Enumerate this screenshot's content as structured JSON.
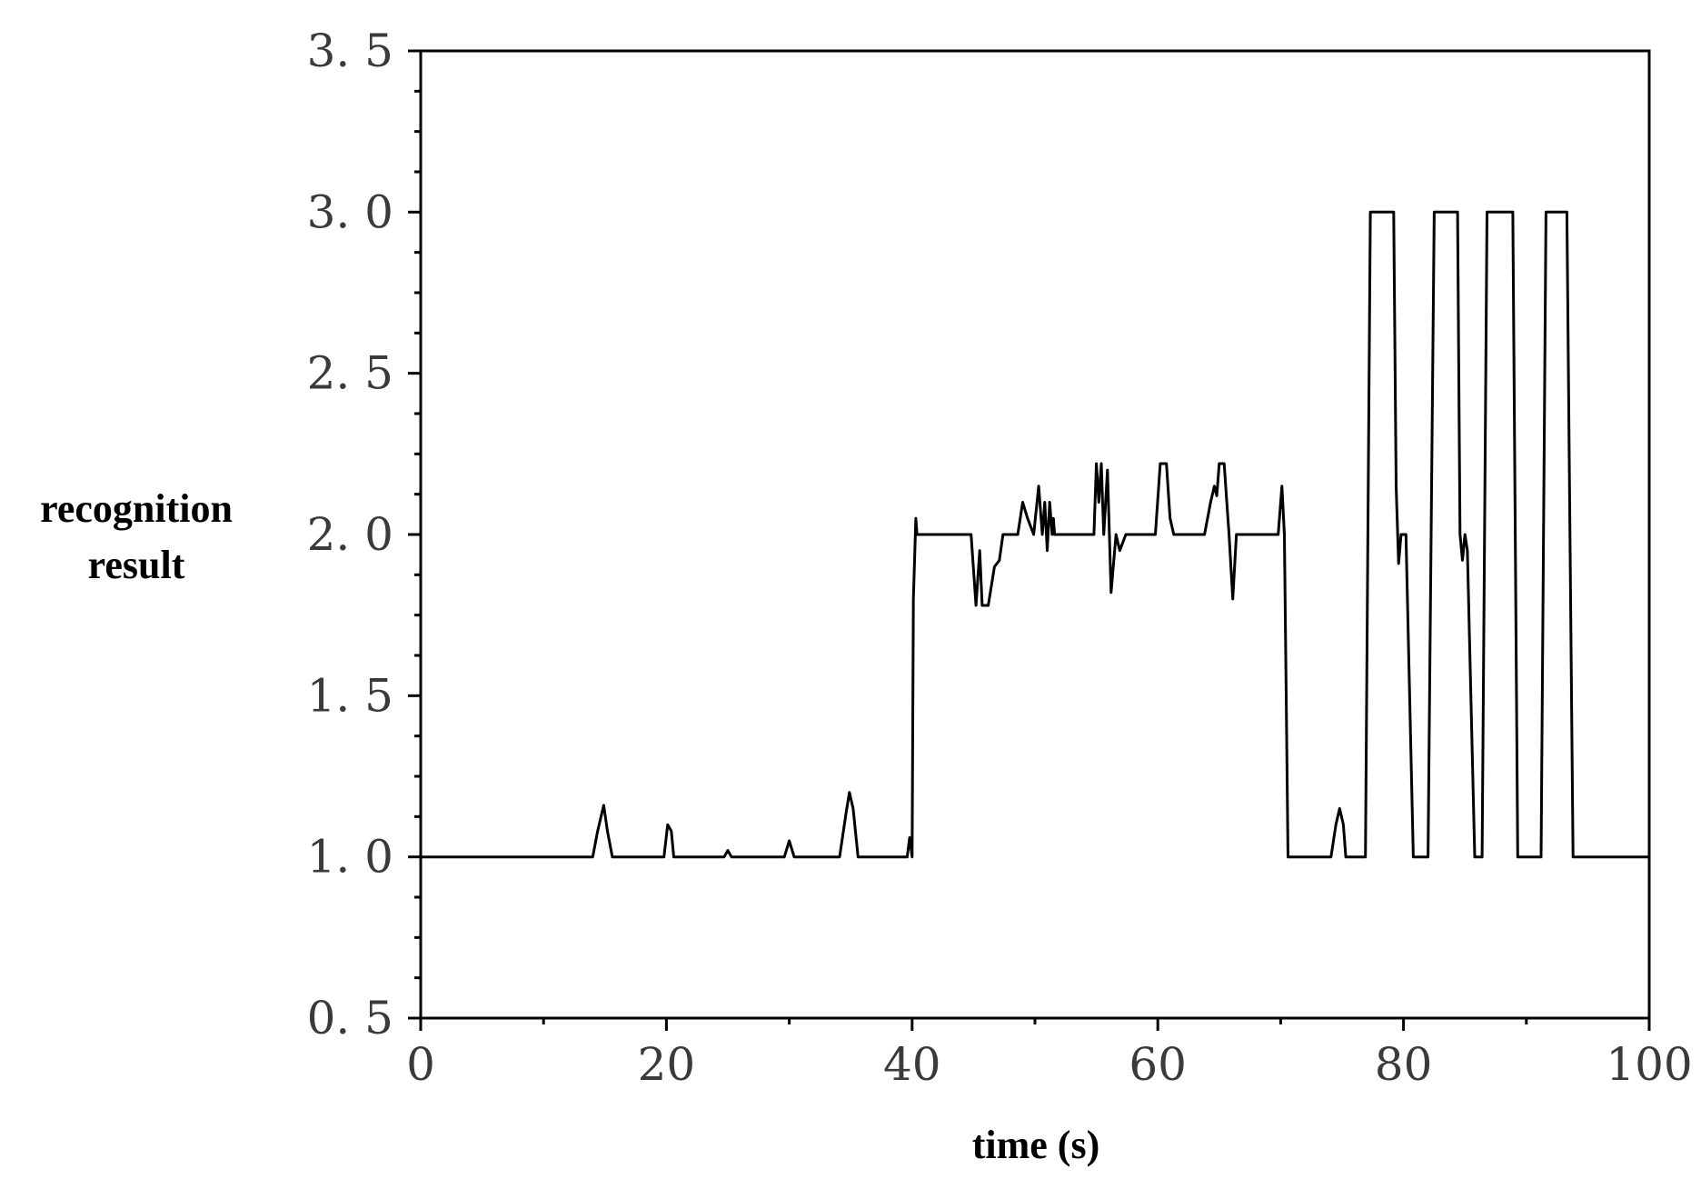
{
  "chart_data": {
    "type": "line",
    "xlabel": "time (s)",
    "ylabel": "recognition result",
    "xlim": [
      0,
      100
    ],
    "ylim": [
      0.5,
      3.5
    ],
    "xticks": [
      0,
      20,
      40,
      60,
      80,
      100
    ],
    "xtick_labels": [
      "0",
      "20",
      "40",
      "60",
      "80",
      "100"
    ],
    "yticks": [
      0.5,
      1.0,
      1.5,
      2.0,
      2.5,
      3.0,
      3.5
    ],
    "ytick_labels": [
      "0. 5",
      "1. 0",
      "1. 5",
      "2. 0",
      "2. 5",
      "3. 0",
      "3. 5"
    ],
    "grid": false,
    "legend": "none",
    "line_color": "#000000",
    "series": [
      {
        "x": [
          0,
          14.0,
          14.4,
          14.9,
          15.2,
          15.6,
          19.8,
          20.1,
          20.4,
          20.6,
          24.7,
          25.0,
          25.3,
          29.6,
          30.0,
          30.4,
          34.1,
          34.6,
          34.9,
          35.2,
          35.6,
          39.6,
          39.8,
          40.0,
          40.1,
          40.3,
          40.4,
          40.5,
          44.8,
          45.2,
          45.5,
          45.7,
          46.2,
          46.7,
          47.1,
          47.4,
          47.8,
          48.6,
          49.0,
          49.4,
          49.9,
          50.3,
          50.6,
          50.8,
          51.0,
          51.2,
          51.4,
          51.5,
          51.6,
          54.2,
          54.8,
          55.0,
          55.2,
          55.4,
          55.6,
          55.9,
          56.2,
          56.6,
          56.9,
          57.4,
          59.8,
          60.2,
          60.7,
          61.0,
          61.3,
          63.5,
          63.8,
          64.3,
          64.6,
          64.8,
          65.0,
          65.4,
          65.8,
          66.1,
          66.4,
          66.7,
          69.8,
          70.1,
          70.3,
          70.6,
          74.1,
          74.5,
          74.8,
          75.1,
          75.3,
          76.9,
          77.3,
          79.2,
          79.4,
          79.6,
          79.8,
          80.2,
          80.8,
          82.0,
          82.5,
          84.4,
          84.6,
          84.8,
          85.0,
          85.2,
          85.8,
          86.4,
          86.8,
          88.9,
          89.3,
          91.2,
          91.6,
          93.3,
          93.8,
          100
        ],
        "y": [
          1.0,
          1.0,
          1.08,
          1.16,
          1.08,
          1.0,
          1.0,
          1.1,
          1.08,
          1.0,
          1.0,
          1.02,
          1.0,
          1.0,
          1.05,
          1.0,
          1.0,
          1.13,
          1.2,
          1.15,
          1.0,
          1.0,
          1.06,
          1.0,
          1.8,
          2.05,
          2.0,
          2.0,
          2.0,
          1.78,
          1.95,
          1.78,
          1.78,
          1.9,
          1.92,
          2.0,
          2.0,
          2.0,
          2.1,
          2.05,
          2.0,
          2.15,
          2.0,
          2.1,
          1.95,
          2.1,
          2.0,
          2.05,
          2.0,
          2.0,
          2.0,
          2.22,
          2.1,
          2.22,
          2.0,
          2.2,
          1.82,
          2.0,
          1.95,
          2.0,
          2.0,
          2.22,
          2.22,
          2.05,
          2.0,
          2.0,
          2.0,
          2.1,
          2.15,
          2.12,
          2.22,
          2.22,
          2.0,
          1.8,
          2.0,
          2.0,
          2.0,
          2.15,
          2.0,
          1.0,
          1.0,
          1.1,
          1.15,
          1.1,
          1.0,
          1.0,
          3.0,
          3.0,
          2.15,
          1.91,
          2.0,
          2.0,
          1.0,
          1.0,
          3.0,
          3.0,
          2.0,
          1.92,
          2.0,
          1.95,
          1.0,
          1.0,
          3.0,
          3.0,
          1.0,
          1.0,
          3.0,
          3.0,
          1.0,
          1.0
        ]
      }
    ]
  }
}
